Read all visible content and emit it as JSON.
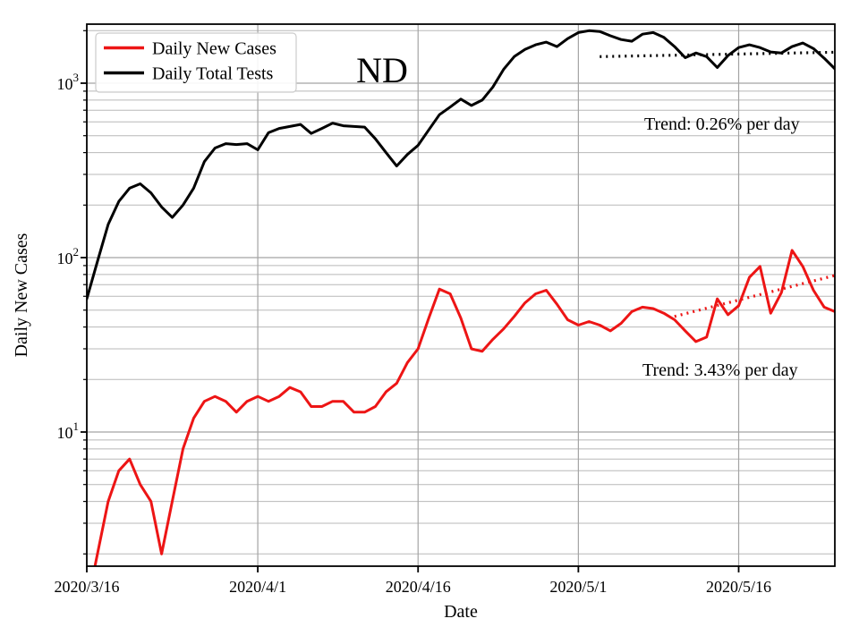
{
  "figure": {
    "title": "ND",
    "legend": {
      "entries": [
        {
          "label": "Daily New Cases",
          "color": "#ed1515"
        },
        {
          "label": "Daily Total Tests",
          "color": "#000000"
        }
      ]
    },
    "annotations": {
      "tests_trend": "Trend: 0.26% per day",
      "cases_trend": "Trend: 3.43% per day"
    },
    "x_axis": {
      "label": "Date",
      "tick_labels": [
        "2020/3/16",
        "2020/4/1",
        "2020/4/16",
        "2020/5/1",
        "2020/5/16"
      ]
    },
    "y_axis": {
      "label": "Daily New Cases",
      "scale": "log",
      "tick_exponents": [
        1,
        2,
        3
      ]
    }
  },
  "chart_data": {
    "type": "line",
    "title": "ND",
    "xlabel": "Date",
    "ylabel": "Daily New Cases",
    "y_scale": "log",
    "ylim": [
      1.7,
      2200
    ],
    "grid": "both",
    "legend_position": "upper left",
    "x_tick_labels": [
      "2020/3/16",
      "2020/4/1",
      "2020/4/16",
      "2020/5/1",
      "2020/5/16"
    ],
    "y_tick_values": [
      10,
      100,
      1000
    ],
    "dates": [
      "2020/3/16",
      "2020/3/17",
      "2020/3/18",
      "2020/3/19",
      "2020/3/20",
      "2020/3/21",
      "2020/3/22",
      "2020/3/23",
      "2020/3/24",
      "2020/3/25",
      "2020/3/26",
      "2020/3/27",
      "2020/3/28",
      "2020/3/29",
      "2020/3/30",
      "2020/3/31",
      "2020/4/1",
      "2020/4/2",
      "2020/4/3",
      "2020/4/4",
      "2020/4/5",
      "2020/4/6",
      "2020/4/7",
      "2020/4/8",
      "2020/4/9",
      "2020/4/10",
      "2020/4/11",
      "2020/4/12",
      "2020/4/13",
      "2020/4/14",
      "2020/4/15",
      "2020/4/16",
      "2020/4/17",
      "2020/4/18",
      "2020/4/19",
      "2020/4/20",
      "2020/4/21",
      "2020/4/22",
      "2020/4/23",
      "2020/4/24",
      "2020/4/25",
      "2020/4/26",
      "2020/4/27",
      "2020/4/28",
      "2020/4/29",
      "2020/4/30",
      "2020/5/1",
      "2020/5/2",
      "2020/5/3",
      "2020/5/4",
      "2020/5/5",
      "2020/5/6",
      "2020/5/7",
      "2020/5/8",
      "2020/5/9",
      "2020/5/10",
      "2020/5/11",
      "2020/5/12",
      "2020/5/13",
      "2020/5/14",
      "2020/5/15",
      "2020/5/16",
      "2020/5/17",
      "2020/5/18",
      "2020/5/19",
      "2020/5/20",
      "2020/5/21",
      "2020/5/22",
      "2020/5/23",
      "2020/5/24",
      "2020/5/25"
    ],
    "series": [
      {
        "name": "Daily New Cases",
        "color": "#ed1515",
        "values": [
          1,
          2,
          4,
          6,
          7,
          5,
          4,
          2,
          4,
          8,
          12,
          15,
          16,
          15,
          13,
          15,
          16,
          15,
          16,
          18,
          17,
          14,
          14,
          15,
          15,
          13,
          13,
          14,
          17,
          19,
          25,
          30,
          45,
          66,
          62,
          45,
          30,
          29,
          34,
          39,
          46,
          55,
          62,
          65,
          54,
          44,
          41,
          43,
          41,
          38,
          42,
          49,
          52,
          51,
          48,
          44,
          38,
          33,
          35,
          58,
          47,
          53,
          77,
          89,
          48,
          63,
          110,
          89,
          65,
          52,
          49
        ]
      },
      {
        "name": "Daily Total Tests",
        "color": "#000000",
        "values": [
          58,
          95,
          155,
          210,
          250,
          265,
          235,
          195,
          170,
          200,
          250,
          355,
          425,
          450,
          445,
          450,
          415,
          520,
          550,
          565,
          580,
          515,
          550,
          590,
          570,
          565,
          560,
          480,
          400,
          335,
          390,
          440,
          540,
          660,
          730,
          810,
          745,
          800,
          950,
          1200,
          1420,
          1560,
          1660,
          1720,
          1620,
          1800,
          1950,
          2000,
          1980,
          1870,
          1780,
          1740,
          1910,
          1950,
          1830,
          1620,
          1400,
          1490,
          1420,
          1230,
          1440,
          1600,
          1660,
          1600,
          1510,
          1490,
          1620,
          1700,
          1580,
          1390,
          1210
        ]
      }
    ],
    "trend_lines": [
      {
        "name": "tests-trend",
        "label": "Trend: 0.26% per day",
        "color": "#000000",
        "start_date": "2020/5/3",
        "end_date": "2020/5/25",
        "start_value": 1420,
        "end_value": 1505,
        "rate_percent_per_day": 0.26
      },
      {
        "name": "cases-trend",
        "label": "Trend: 3.43% per day",
        "color": "#ed1515",
        "start_date": "2020/5/10",
        "end_date": "2020/5/25",
        "start_value": 46,
        "end_value": 79,
        "rate_percent_per_day": 3.43
      }
    ]
  }
}
